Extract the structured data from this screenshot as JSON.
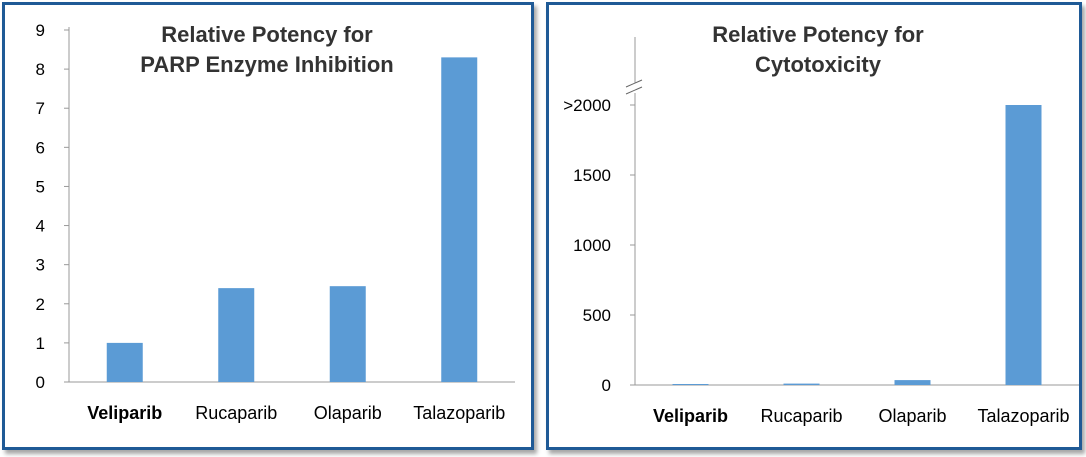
{
  "chart_data": [
    {
      "type": "bar",
      "title_lines": [
        "Relative Potency for",
        "PARP Enzyme Inhibition"
      ],
      "categories": [
        "Veliparib",
        "Rucaparib",
        "Olaparib",
        "Talazoparib"
      ],
      "bold_categories": [
        "Veliparib"
      ],
      "values": [
        1,
        2.4,
        2.45,
        8.3
      ],
      "ylim": [
        0,
        9
      ],
      "yticks": [
        0,
        1,
        2,
        3,
        4,
        5,
        6,
        7,
        8,
        9
      ],
      "ytick_labels": [
        "0",
        "1",
        "2",
        "3",
        "4",
        "5",
        "6",
        "7",
        "8",
        "9"
      ],
      "bar_color": "#5b9bd5",
      "axis_break": false,
      "grid": false,
      "legend": "none"
    },
    {
      "type": "bar",
      "title_lines": [
        "Relative Potency for",
        "Cytotoxicity"
      ],
      "categories": [
        "Veliparib",
        "Rucaparib",
        "Olaparib",
        "Talazoparib"
      ],
      "bold_categories": [
        "Veliparib"
      ],
      "values": [
        1,
        10,
        35,
        2000
      ],
      "ylim": [
        0,
        2000
      ],
      "yticks": [
        0,
        500,
        1000,
        1500,
        2000
      ],
      "ytick_labels": [
        "0",
        "500",
        "1000",
        "1500",
        ">2000"
      ],
      "bar_color": "#5b9bd5",
      "axis_break": true,
      "grid": false,
      "legend": "none"
    }
  ]
}
